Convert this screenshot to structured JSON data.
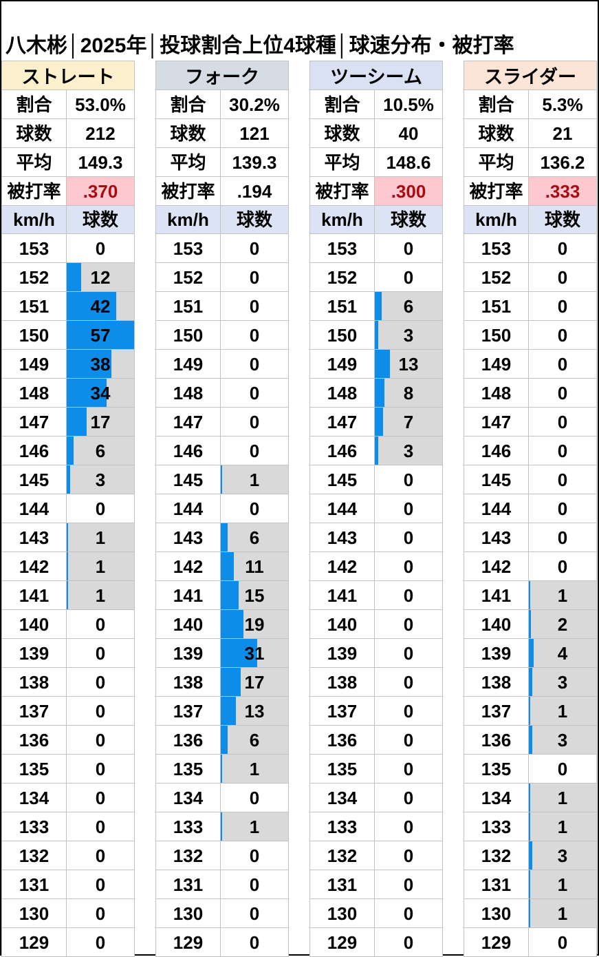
{
  "title": "八木彬│2025年│投球割合上位4球種│球速分布・被打率",
  "stat_labels": {
    "share": "割合",
    "pitch_count": "球数",
    "average": "平均",
    "batting_avg_against": "被打率"
  },
  "velocity_table_headers": {
    "speed": "km/h",
    "count": "球数"
  },
  "colors": {
    "bar_blue": "#0d8de9",
    "nonzero_cell_bg": "#d9d9d9",
    "zero_cell_bg": "#ffffff",
    "bad_stat_bg": "#ffc7ce",
    "bad_stat_text": "#a50d12",
    "velocity_header_bg": "#dbe3f4",
    "straight_header_bg": "#fdf0cd",
    "fork_header_bg": "#d6dce4",
    "twoseam_header_bg": "#d9e1f2",
    "slider_header_bg": "#fce4d6"
  },
  "chart_data": {
    "type": "bar",
    "subtype": "horizontal data-bar histograms, one table per pitch type",
    "title": "八木彬│2025年│投球割合上位4球種│球速分布・被打率",
    "x_axis_label": "球数",
    "y_axis_label": "km/h",
    "speeds_kmh": [
      153,
      152,
      151,
      150,
      149,
      148,
      147,
      146,
      145,
      144,
      143,
      142,
      141,
      140,
      139,
      138,
      137,
      136,
      135,
      134,
      133,
      132,
      131,
      130,
      129
    ],
    "bar_scale_max": 57,
    "series": [
      {
        "name": "ストレート",
        "header_color_key": "straight_header_bg",
        "share": "53.0%",
        "pitch_count": "212",
        "average_kmh": "149.3",
        "batting_avg_against": ".370",
        "baa_highlighted": true,
        "counts": [
          0,
          12,
          42,
          57,
          38,
          34,
          17,
          6,
          3,
          0,
          1,
          1,
          1,
          0,
          0,
          0,
          0,
          0,
          0,
          0,
          0,
          0,
          0,
          0,
          0
        ]
      },
      {
        "name": "フォーク",
        "header_color_key": "fork_header_bg",
        "share": "30.2%",
        "pitch_count": "121",
        "average_kmh": "139.3",
        "batting_avg_against": ".194",
        "baa_highlighted": false,
        "counts": [
          0,
          0,
          0,
          0,
          0,
          0,
          0,
          0,
          1,
          0,
          6,
          11,
          15,
          19,
          31,
          17,
          13,
          6,
          1,
          0,
          1,
          0,
          0,
          0,
          0
        ]
      },
      {
        "name": "ツーシーム",
        "header_color_key": "twoseam_header_bg",
        "share": "10.5%",
        "pitch_count": "40",
        "average_kmh": "148.6",
        "batting_avg_against": ".300",
        "baa_highlighted": true,
        "counts": [
          0,
          0,
          6,
          3,
          13,
          8,
          7,
          3,
          0,
          0,
          0,
          0,
          0,
          0,
          0,
          0,
          0,
          0,
          0,
          0,
          0,
          0,
          0,
          0,
          0
        ]
      },
      {
        "name": "スライダー",
        "header_color_key": "slider_header_bg",
        "share": "5.3%",
        "pitch_count": "21",
        "average_kmh": "136.2",
        "batting_avg_against": ".333",
        "baa_highlighted": true,
        "counts": [
          0,
          0,
          0,
          0,
          0,
          0,
          0,
          0,
          0,
          0,
          0,
          0,
          1,
          2,
          4,
          3,
          1,
          3,
          0,
          1,
          1,
          3,
          1,
          1,
          0
        ]
      }
    ]
  }
}
